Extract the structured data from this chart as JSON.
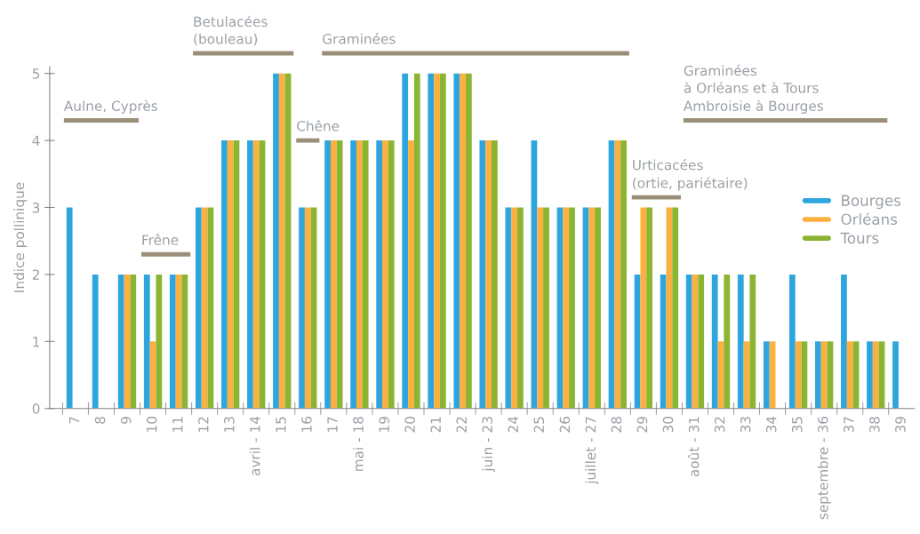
{
  "chart_data": {
    "type": "bar",
    "ylabel": "Indice pollinique",
    "categories": [
      "7",
      "8",
      "9",
      "10",
      "11",
      "12",
      "13",
      "avril - 14",
      "15",
      "16",
      "17",
      "mai - 18",
      "19",
      "20",
      "21",
      "22",
      "juin - 23",
      "24",
      "25",
      "26",
      "juillet - 27",
      "28",
      "29",
      "30",
      "août - 31",
      "32",
      "33",
      "34",
      "35",
      "septembre - 36",
      "37",
      "38",
      "39"
    ],
    "series": [
      {
        "name": "Bourges",
        "color": "#2ea6dd",
        "values": [
          3,
          2,
          2,
          2,
          2,
          3,
          4,
          4,
          5,
          3,
          4,
          4,
          4,
          5,
          5,
          5,
          4,
          3,
          4,
          3,
          3,
          4,
          2,
          2,
          2,
          2,
          2,
          1,
          2,
          1,
          2,
          1,
          1
        ]
      },
      {
        "name": "Orléans",
        "color": "#fbb040",
        "values": [
          null,
          null,
          2,
          1,
          2,
          3,
          4,
          4,
          5,
          3,
          4,
          4,
          4,
          4,
          5,
          5,
          4,
          3,
          3,
          3,
          3,
          4,
          3,
          3,
          2,
          1,
          1,
          1,
          1,
          1,
          1,
          1,
          null
        ]
      },
      {
        "name": "Tours",
        "color": "#8bb432",
        "values": [
          null,
          null,
          2,
          2,
          2,
          3,
          4,
          4,
          5,
          3,
          4,
          4,
          4,
          5,
          5,
          5,
          4,
          3,
          3,
          3,
          3,
          4,
          3,
          3,
          2,
          2,
          2,
          null,
          1,
          1,
          1,
          1,
          null
        ]
      }
    ],
    "ylim": [
      0,
      5.1
    ],
    "yticks": [
      0,
      1,
      2,
      3,
      4,
      5
    ],
    "grid": false,
    "legend": "right",
    "annotations": [
      "Aulne, Cyprès",
      "Frêne",
      "Betulacées\n(bouleau)",
      "Chêne",
      "Graminées",
      "Urticacées\n(ortie, pariétaire)",
      "Graminées\nà Orléans et à Tours\nAmbroisie à Bourges"
    ]
  }
}
